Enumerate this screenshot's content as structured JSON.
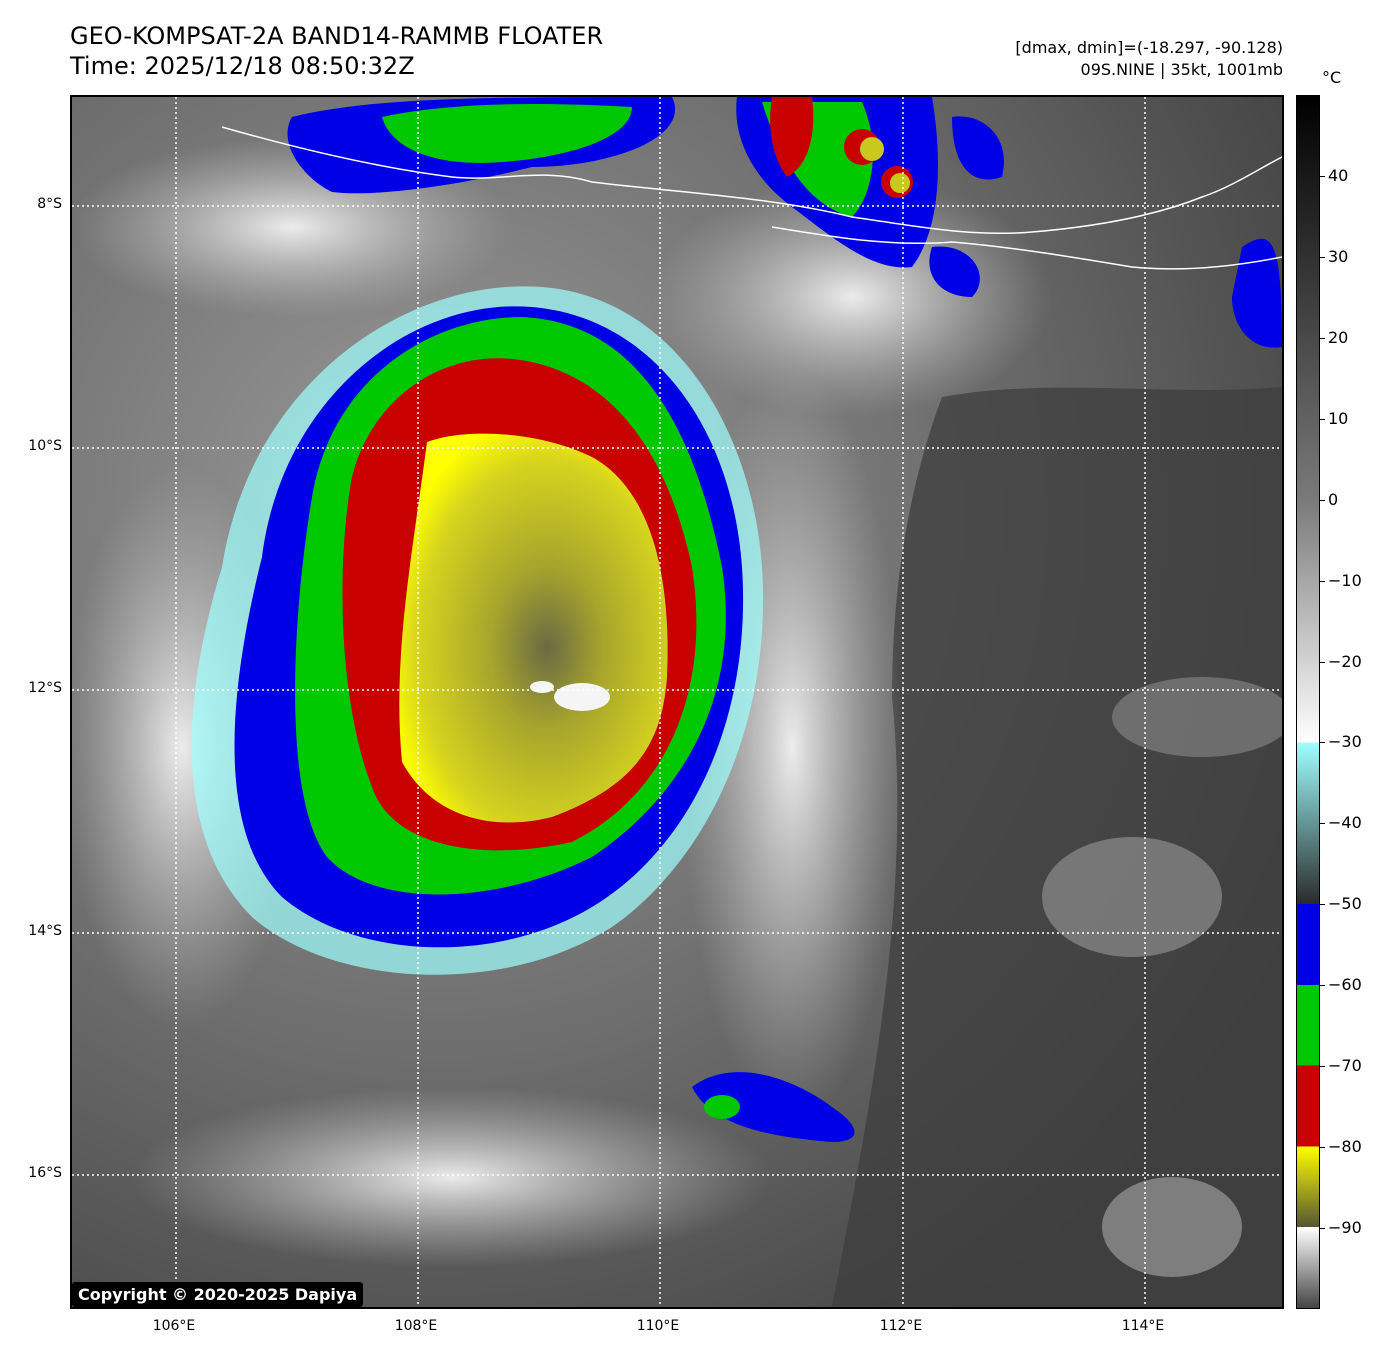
{
  "header": {
    "title_line1": "GEO-KOMPSAT-2A BAND14-RAMMB FLOATER",
    "title_line2": "Time: 2025/12/18 08:50:32Z",
    "info_line1": "[dmax, dmin]=(-18.297, -90.128)",
    "info_line2": "09S.NINE | 35kt, 1001mb"
  },
  "map": {
    "lat_labels": [
      "8°S",
      "10°S",
      "12°S",
      "14°S",
      "16°S"
    ],
    "lon_labels": [
      "106°E",
      "108°E",
      "110°E",
      "112°E",
      "114°E"
    ],
    "gridlines": true,
    "coastline_color": "#ffffff",
    "storm_name": "09S.NINE"
  },
  "colorbar": {
    "unit": "°C",
    "ticks": [
      "40",
      "30",
      "20",
      "10",
      "0",
      "−10",
      "−20",
      "−30",
      "−40",
      "−50",
      "−60",
      "−70",
      "−80",
      "−90"
    ],
    "range": [
      -100,
      50
    ],
    "colors": {
      "blue": "#0000e6",
      "green": "#00c800",
      "red": "#c80000",
      "yellow": "#ffff00",
      "cyan": "#a0ffff"
    }
  },
  "copyright": "Copyright © 2020-2025 Dapiya"
}
